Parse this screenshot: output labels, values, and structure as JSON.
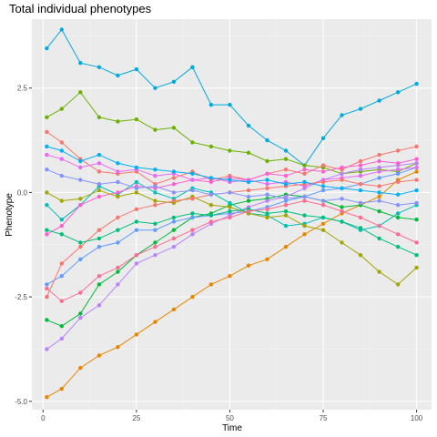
{
  "chart_data": {
    "type": "line",
    "title": "Total individual phenotypes",
    "xlabel": "Time",
    "ylabel": "Phenotype",
    "xlim": [
      -3,
      104
    ],
    "ylim": [
      -5.2,
      4.15
    ],
    "x_ticks": [
      0,
      25,
      50,
      75,
      100
    ],
    "y_ticks": [
      -5.0,
      -2.5,
      0.0,
      2.5
    ],
    "y_tick_labels": [
      "-5.0",
      "-2.5",
      "0.0",
      "2.5"
    ],
    "grid": true,
    "legend": "none",
    "marker": "point",
    "panel_background": "#ebebeb",
    "series": [
      {
        "color": "#00a9e0",
        "x": [
          1,
          5,
          10,
          15,
          20,
          25,
          30,
          35,
          40,
          45,
          50,
          55,
          60,
          65,
          70,
          75,
          80,
          85,
          90,
          95,
          100
        ],
        "y": [
          3.45,
          3.9,
          3.1,
          3.0,
          2.8,
          2.95,
          2.5,
          2.65,
          3.0,
          2.1,
          2.1,
          1.6,
          1.25,
          1.0,
          0.65,
          1.3,
          1.85,
          2.0,
          2.2,
          2.4,
          2.6
        ]
      },
      {
        "color": "#e58700",
        "x": [
          1,
          5,
          10,
          15,
          20,
          25,
          30,
          35,
          40,
          45,
          50,
          55,
          60,
          65,
          70,
          75,
          80,
          85,
          90,
          95,
          100
        ],
        "y": [
          -4.9,
          -4.7,
          -4.2,
          -3.9,
          -3.7,
          -3.4,
          -3.1,
          -2.8,
          -2.5,
          -2.2,
          -2.0,
          -1.75,
          -1.6,
          -1.3,
          -1.0,
          -0.75,
          -0.5,
          -0.3,
          -0.1,
          0.3,
          0.5
        ]
      },
      {
        "color": "#6bb100",
        "x": [
          1,
          5,
          10,
          15,
          20,
          25,
          30,
          35,
          40,
          45,
          50,
          55,
          60,
          65,
          70,
          75,
          80,
          85,
          90,
          95,
          100
        ],
        "y": [
          1.8,
          2.0,
          2.4,
          1.8,
          1.7,
          1.75,
          1.5,
          1.55,
          1.2,
          1.1,
          1.0,
          0.95,
          0.75,
          0.8,
          0.65,
          0.6,
          0.45,
          0.5,
          0.55,
          0.5,
          0.7
        ]
      },
      {
        "color": "#00ba38",
        "x": [
          1,
          5,
          10,
          15,
          20,
          25,
          30,
          35,
          40,
          45,
          50,
          55,
          60,
          65,
          70,
          75,
          80,
          85,
          90,
          95,
          100
        ],
        "y": [
          -3.05,
          -3.2,
          -2.9,
          -2.2,
          -1.9,
          -1.5,
          -1.2,
          -0.9,
          -0.6,
          -0.5,
          -0.3,
          -0.2,
          -0.15,
          -0.05,
          -0.1,
          -0.2,
          -0.35,
          -0.3,
          -0.45,
          -0.6,
          -0.65
        ]
      },
      {
        "color": "#00c0b8",
        "x": [
          1,
          5,
          10,
          15,
          20,
          25,
          30,
          35,
          40,
          45,
          50,
          55,
          60,
          65,
          70,
          75,
          80,
          85,
          90,
          95,
          100
        ],
        "y": [
          -0.3,
          -0.65,
          -0.3,
          0.15,
          -0.05,
          0.25,
          0.0,
          -0.15,
          0.1,
          0.0,
          -0.25,
          -0.5,
          -0.55,
          -0.8,
          -0.75,
          -0.6,
          -0.7,
          -0.9,
          -0.8,
          -0.5,
          -0.3
        ]
      },
      {
        "color": "#619cff",
        "x": [
          1,
          5,
          10,
          15,
          20,
          25,
          30,
          35,
          40,
          45,
          50,
          55,
          60,
          65,
          70,
          75,
          80,
          85,
          90,
          95,
          100
        ],
        "y": [
          -2.2,
          -2.0,
          -1.6,
          -1.3,
          -1.2,
          -0.9,
          -0.9,
          -0.7,
          -0.6,
          -0.55,
          -0.5,
          -0.45,
          -0.35,
          -0.2,
          -0.1,
          0.05,
          0.1,
          0.2,
          0.35,
          0.45,
          0.6
        ]
      },
      {
        "color": "#b983ff",
        "x": [
          1,
          5,
          10,
          15,
          20,
          25,
          30,
          35,
          40,
          45,
          50,
          55,
          60,
          65,
          70,
          75,
          80,
          85,
          90,
          95,
          100
        ],
        "y": [
          -3.75,
          -3.5,
          -3.0,
          -2.7,
          -2.2,
          -1.7,
          -1.5,
          -1.3,
          -1.0,
          -0.75,
          -0.55,
          -0.35,
          -0.2,
          -0.1,
          0.1,
          0.3,
          0.45,
          0.55,
          0.6,
          0.65,
          0.7
        ]
      },
      {
        "color": "#f8766d",
        "x": [
          1,
          5,
          10,
          15,
          20,
          25,
          30,
          35,
          40,
          45,
          50,
          55,
          60,
          65,
          70,
          75,
          80,
          85,
          90,
          95,
          100
        ],
        "y": [
          1.45,
          1.2,
          0.8,
          0.5,
          0.45,
          0.5,
          0.2,
          0.35,
          0.5,
          0.3,
          0.4,
          0.3,
          0.45,
          0.55,
          0.45,
          0.65,
          0.55,
          0.75,
          0.9,
          1.0,
          1.1
        ]
      },
      {
        "color": "#fd61d1",
        "x": [
          1,
          5,
          10,
          15,
          20,
          25,
          30,
          35,
          40,
          45,
          50,
          55,
          60,
          65,
          70,
          75,
          80,
          85,
          90,
          95,
          100
        ],
        "y": [
          -1.0,
          -0.8,
          -0.3,
          -0.1,
          0.0,
          0.15,
          0.1,
          0.2,
          0.3,
          0.25,
          0.35,
          0.3,
          0.45,
          0.4,
          0.55,
          0.5,
          0.6,
          0.65,
          0.75,
          0.7,
          0.8
        ]
      },
      {
        "color": "#e76bf3",
        "x": [
          1,
          5,
          10,
          15,
          20,
          25,
          30,
          35,
          40,
          45,
          50,
          55,
          60,
          65,
          70,
          75,
          80,
          85,
          90,
          95,
          100
        ],
        "y": [
          0.9,
          0.8,
          0.6,
          0.7,
          0.5,
          0.55,
          0.4,
          0.45,
          0.3,
          0.35,
          0.25,
          0.3,
          0.2,
          0.25,
          0.15,
          0.3,
          0.35,
          0.4,
          0.5,
          0.55,
          0.6
        ]
      },
      {
        "color": "#a3a500",
        "x": [
          1,
          5,
          10,
          15,
          20,
          25,
          30,
          35,
          40,
          45,
          50,
          55,
          60,
          65,
          70,
          75,
          80,
          85,
          90,
          95,
          100
        ],
        "y": [
          0.0,
          -0.2,
          -0.15,
          0.05,
          -0.1,
          0.0,
          -0.2,
          -0.25,
          -0.1,
          -0.3,
          -0.35,
          -0.5,
          -0.6,
          -0.55,
          -0.8,
          -0.9,
          -1.2,
          -1.5,
          -1.9,
          -2.2,
          -1.8
        ]
      },
      {
        "color": "#f8766d",
        "x": [
          1,
          5,
          10,
          15,
          20,
          25,
          30,
          35,
          40,
          45,
          50,
          55,
          60,
          65,
          70,
          75,
          80,
          85,
          90,
          95,
          100
        ],
        "y": [
          -2.5,
          -1.7,
          -1.3,
          -0.9,
          -0.6,
          -0.4,
          -0.3,
          -0.2,
          -0.15,
          -0.05,
          0.0,
          0.05,
          0.1,
          0.15,
          0.2,
          0.25,
          0.3,
          0.2,
          0.15,
          0.25,
          0.3
        ]
      },
      {
        "color": "#00bf7d",
        "x": [
          1,
          5,
          10,
          15,
          20,
          25,
          30,
          35,
          40,
          45,
          50,
          55,
          60,
          65,
          70,
          75,
          80,
          85,
          90,
          95,
          100
        ],
        "y": [
          -0.9,
          -1.0,
          -1.2,
          -1.1,
          -0.9,
          -0.7,
          -0.75,
          -0.6,
          -0.5,
          -0.55,
          -0.45,
          -0.4,
          -0.5,
          -0.45,
          -0.55,
          -0.6,
          -0.7,
          -0.85,
          -1.1,
          -1.3,
          -1.5
        ]
      },
      {
        "color": "#00b0f6",
        "x": [
          1,
          5,
          10,
          15,
          20,
          25,
          30,
          35,
          40,
          45,
          50,
          55,
          60,
          65,
          70,
          75,
          80,
          85,
          90,
          95,
          100
        ],
        "y": [
          1.1,
          1.0,
          0.75,
          0.9,
          0.7,
          0.6,
          0.55,
          0.5,
          0.45,
          0.35,
          0.3,
          0.25,
          0.3,
          0.2,
          0.25,
          0.15,
          0.1,
          0.05,
          0.0,
          -0.05,
          0.05
        ]
      },
      {
        "color": "#ff6c91",
        "x": [
          1,
          5,
          10,
          15,
          20,
          25,
          30,
          35,
          40,
          45,
          50,
          55,
          60,
          65,
          70,
          75,
          80,
          85,
          90,
          95,
          100
        ],
        "y": [
          -2.3,
          -2.6,
          -2.4,
          -2.0,
          -1.8,
          -1.5,
          -1.3,
          -1.1,
          -0.9,
          -0.7,
          -0.6,
          -0.45,
          -0.4,
          -0.3,
          -0.2,
          -0.3,
          -0.45,
          -0.6,
          -0.8,
          -1.0,
          -1.2
        ]
      },
      {
        "color": "#8494ff",
        "x": [
          1,
          5,
          10,
          15,
          20,
          25,
          30,
          35,
          40,
          45,
          50,
          55,
          60,
          65,
          70,
          75,
          80,
          85,
          90,
          95,
          100
        ],
        "y": [
          0.55,
          0.4,
          0.3,
          0.2,
          0.25,
          0.1,
          0.15,
          0.0,
          0.05,
          -0.05,
          0.0,
          -0.1,
          -0.05,
          -0.15,
          -0.1,
          -0.2,
          -0.15,
          -0.25,
          -0.2,
          -0.3,
          -0.25
        ]
      }
    ]
  }
}
